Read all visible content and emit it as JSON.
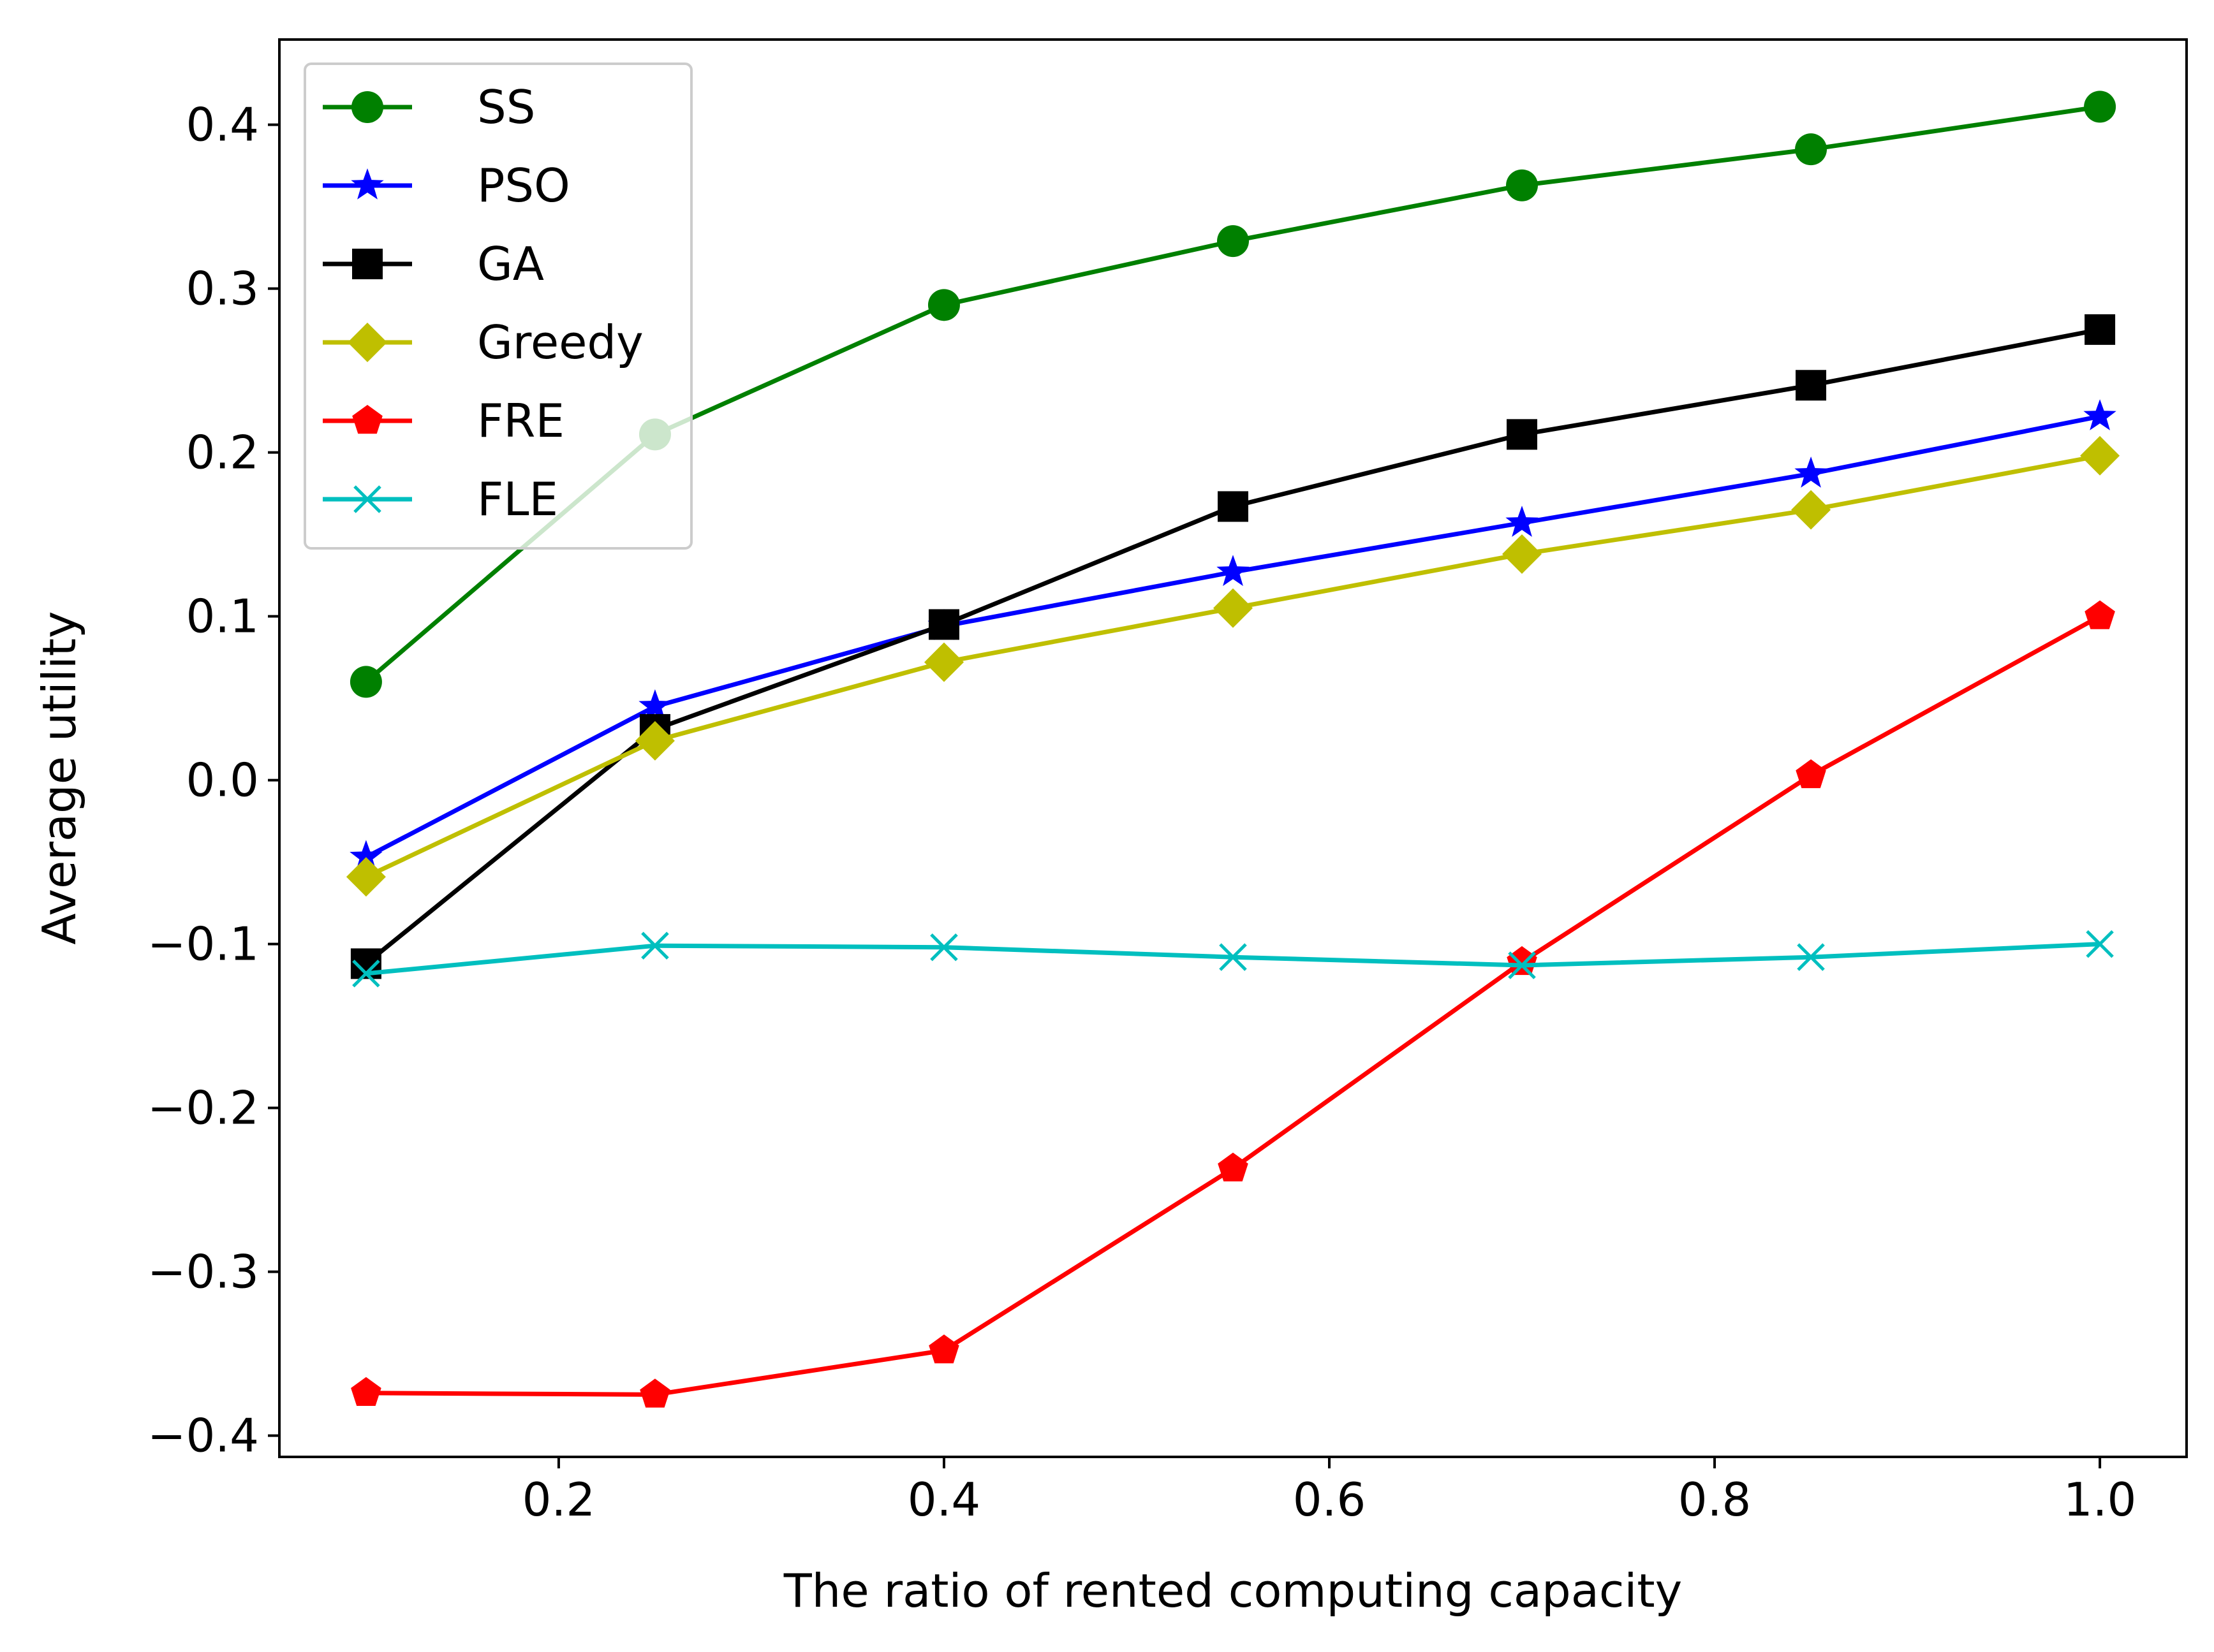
{
  "chart_data": {
    "type": "line",
    "title": "",
    "xlabel": "The ratio of rented computing capacity",
    "ylabel": "Average utility",
    "xlim": [
      0.055,
      1.045
    ],
    "ylim": [
      -0.413,
      0.452
    ],
    "xticks": [
      0.2,
      0.4,
      0.6,
      0.8,
      1.0
    ],
    "xtick_labels": [
      "0.2",
      "0.4",
      "0.6",
      "0.8",
      "1.0"
    ],
    "yticks": [
      -0.4,
      -0.3,
      -0.2,
      -0.1,
      0.0,
      0.1,
      0.2,
      0.3,
      0.4
    ],
    "ytick_labels": [
      "−0.4",
      "−0.3",
      "−0.2",
      "−0.1",
      "0.0",
      "0.1",
      "0.2",
      "0.3",
      "0.4"
    ],
    "grid": false,
    "legend_position": "upper-left",
    "x": [
      0.1,
      0.25,
      0.4,
      0.55,
      0.7,
      0.85,
      1.0
    ],
    "series": [
      {
        "name": "SS",
        "color": "#008000",
        "marker": "circle",
        "values": [
          0.06,
          0.211,
          0.29,
          0.329,
          0.363,
          0.385,
          0.411
        ]
      },
      {
        "name": "PSO",
        "color": "#0000ff",
        "marker": "star",
        "values": [
          -0.047,
          0.045,
          0.094,
          0.127,
          0.157,
          0.187,
          0.222
        ]
      },
      {
        "name": "GA",
        "color": "#000000",
        "marker": "square",
        "values": [
          -0.112,
          0.031,
          0.095,
          0.167,
          0.211,
          0.241,
          0.275
        ]
      },
      {
        "name": "Greedy",
        "color": "#bfbf00",
        "marker": "diamond",
        "values": [
          -0.059,
          0.024,
          0.072,
          0.105,
          0.138,
          0.165,
          0.198
        ]
      },
      {
        "name": "FRE",
        "color": "#ff0000",
        "marker": "pentagon",
        "values": [
          -0.374,
          -0.375,
          -0.348,
          -0.237,
          -0.111,
          0.003,
          0.1
        ]
      },
      {
        "name": "FLE",
        "color": "#00bfbf",
        "marker": "x",
        "values": [
          -0.118,
          -0.101,
          -0.102,
          -0.108,
          -0.113,
          -0.108,
          -0.1
        ]
      }
    ]
  }
}
